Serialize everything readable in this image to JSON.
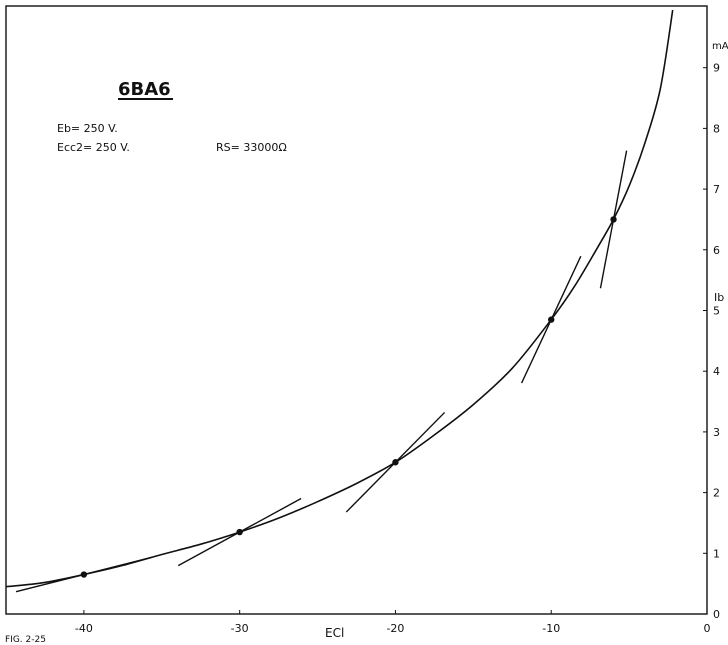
{
  "chart_data": {
    "type": "line",
    "title": "6BA6",
    "conditions": [
      "Eb= 250 V.",
      "Ecc2= 250 V.",
      "RS= 33000Ω"
    ],
    "xlabel": "ECl",
    "ylabel": "Ib",
    "yunit": "mA",
    "figure_label": "FIG. 2-25",
    "xlim": [
      -45,
      0
    ],
    "ylim": [
      0,
      10
    ],
    "xticks": [
      -40,
      -30,
      -20,
      -10,
      0
    ],
    "xtick_labels": [
      "-40",
      "-30",
      "-20",
      "-10",
      "0"
    ],
    "yticks": [
      0,
      1,
      2,
      3,
      4,
      5,
      6,
      7,
      8,
      9
    ],
    "ytick_labels": [
      "0",
      "1",
      "2",
      "3",
      "4",
      "5",
      "6",
      "7",
      "8",
      "9"
    ],
    "grid": false,
    "series": [
      {
        "x": [
          -45,
          -42.5,
          -40,
          -37.5,
          -35,
          -32.5,
          -30,
          -27.5,
          -25,
          -22.5,
          -20,
          -17.5,
          -15,
          -12.5,
          -10,
          -8.5,
          -7,
          -6,
          -5,
          -4,
          -3,
          -2.2
        ],
        "y": [
          0.45,
          0.52,
          0.65,
          0.8,
          0.98,
          1.15,
          1.35,
          1.58,
          1.85,
          2.15,
          2.5,
          2.95,
          3.45,
          4.05,
          4.85,
          5.4,
          6.05,
          6.5,
          7.05,
          7.75,
          8.65,
          9.95
        ]
      }
    ],
    "tangent_points": [
      {
        "x": -40,
        "y": 0.65,
        "slope": 0.065
      },
      {
        "x": -30,
        "y": 1.35,
        "slope": 0.14
      },
      {
        "x": -20,
        "y": 2.5,
        "slope": 0.26
      },
      {
        "x": -10,
        "y": 4.85,
        "slope": 0.55
      },
      {
        "x": -6,
        "y": 6.5,
        "slope": 1.35
      }
    ]
  }
}
